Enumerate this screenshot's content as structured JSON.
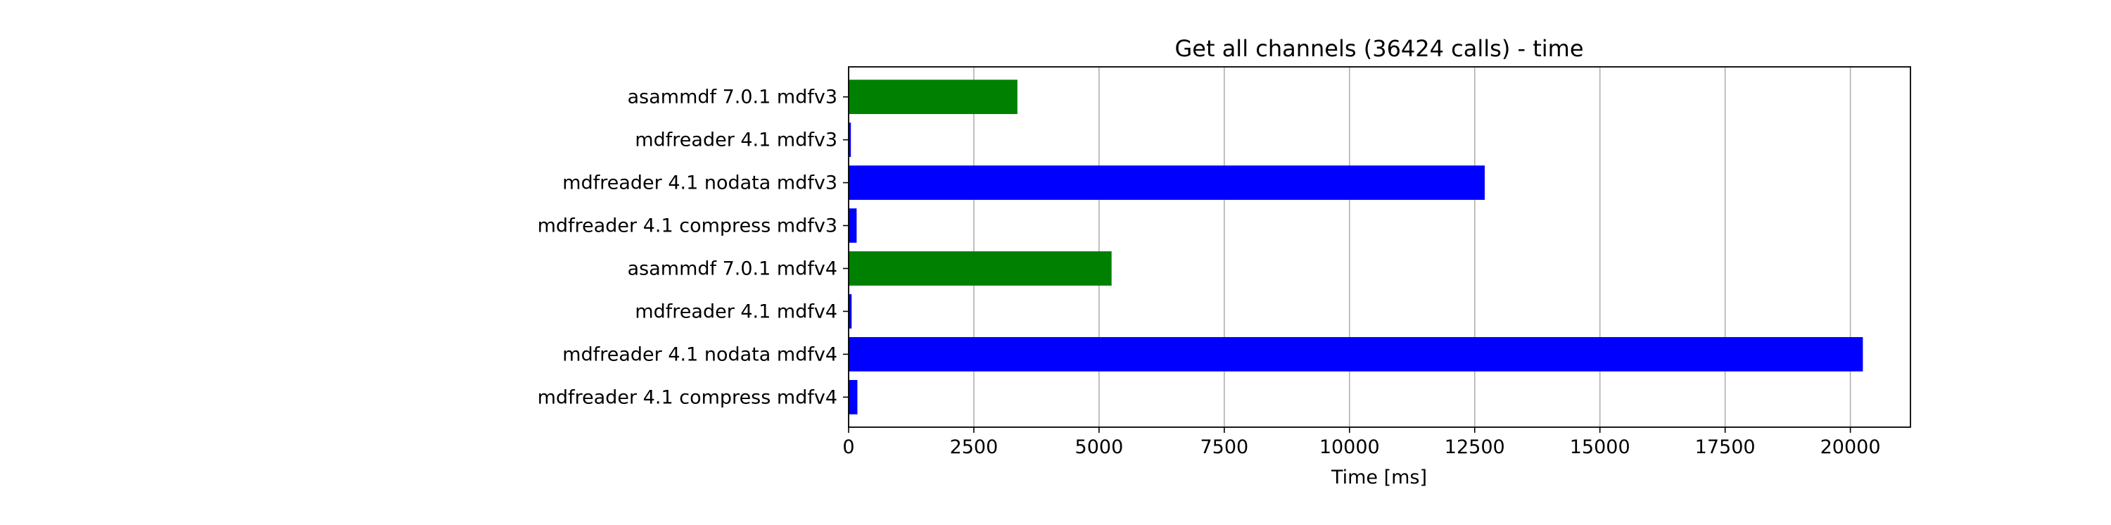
{
  "chart_data": {
    "type": "bar",
    "orientation": "horizontal",
    "title": "Get all channels (36424 calls) - time",
    "xlabel": "Time [ms]",
    "ylabel": "",
    "xlim": [
      0,
      21200
    ],
    "x_ticks": [
      0,
      2500,
      5000,
      7500,
      10000,
      12500,
      15000,
      17500,
      20000
    ],
    "grid": "x-axis vertical lines",
    "legend": "none",
    "categories": [
      "asammdf 7.0.1 mdfv3",
      "mdfreader 4.1 mdfv3",
      "mdfreader 4.1 nodata mdfv3",
      "mdfreader 4.1 compress mdfv3",
      "asammdf 7.0.1 mdfv4",
      "mdfreader 4.1 mdfv4",
      "mdfreader 4.1 nodata mdfv4",
      "mdfreader 4.1 compress mdfv4"
    ],
    "values": [
      3370,
      45,
      12700,
      160,
      5250,
      60,
      20250,
      175
    ],
    "bar_colors": [
      "#008000",
      "#0000ff",
      "#0000ff",
      "#0000ff",
      "#008000",
      "#0000ff",
      "#0000ff",
      "#0000ff"
    ],
    "colors": {
      "asammdf": "#008000",
      "mdfreader": "#0000ff",
      "grid": "#b0b0b0",
      "axes": "#000000"
    }
  }
}
